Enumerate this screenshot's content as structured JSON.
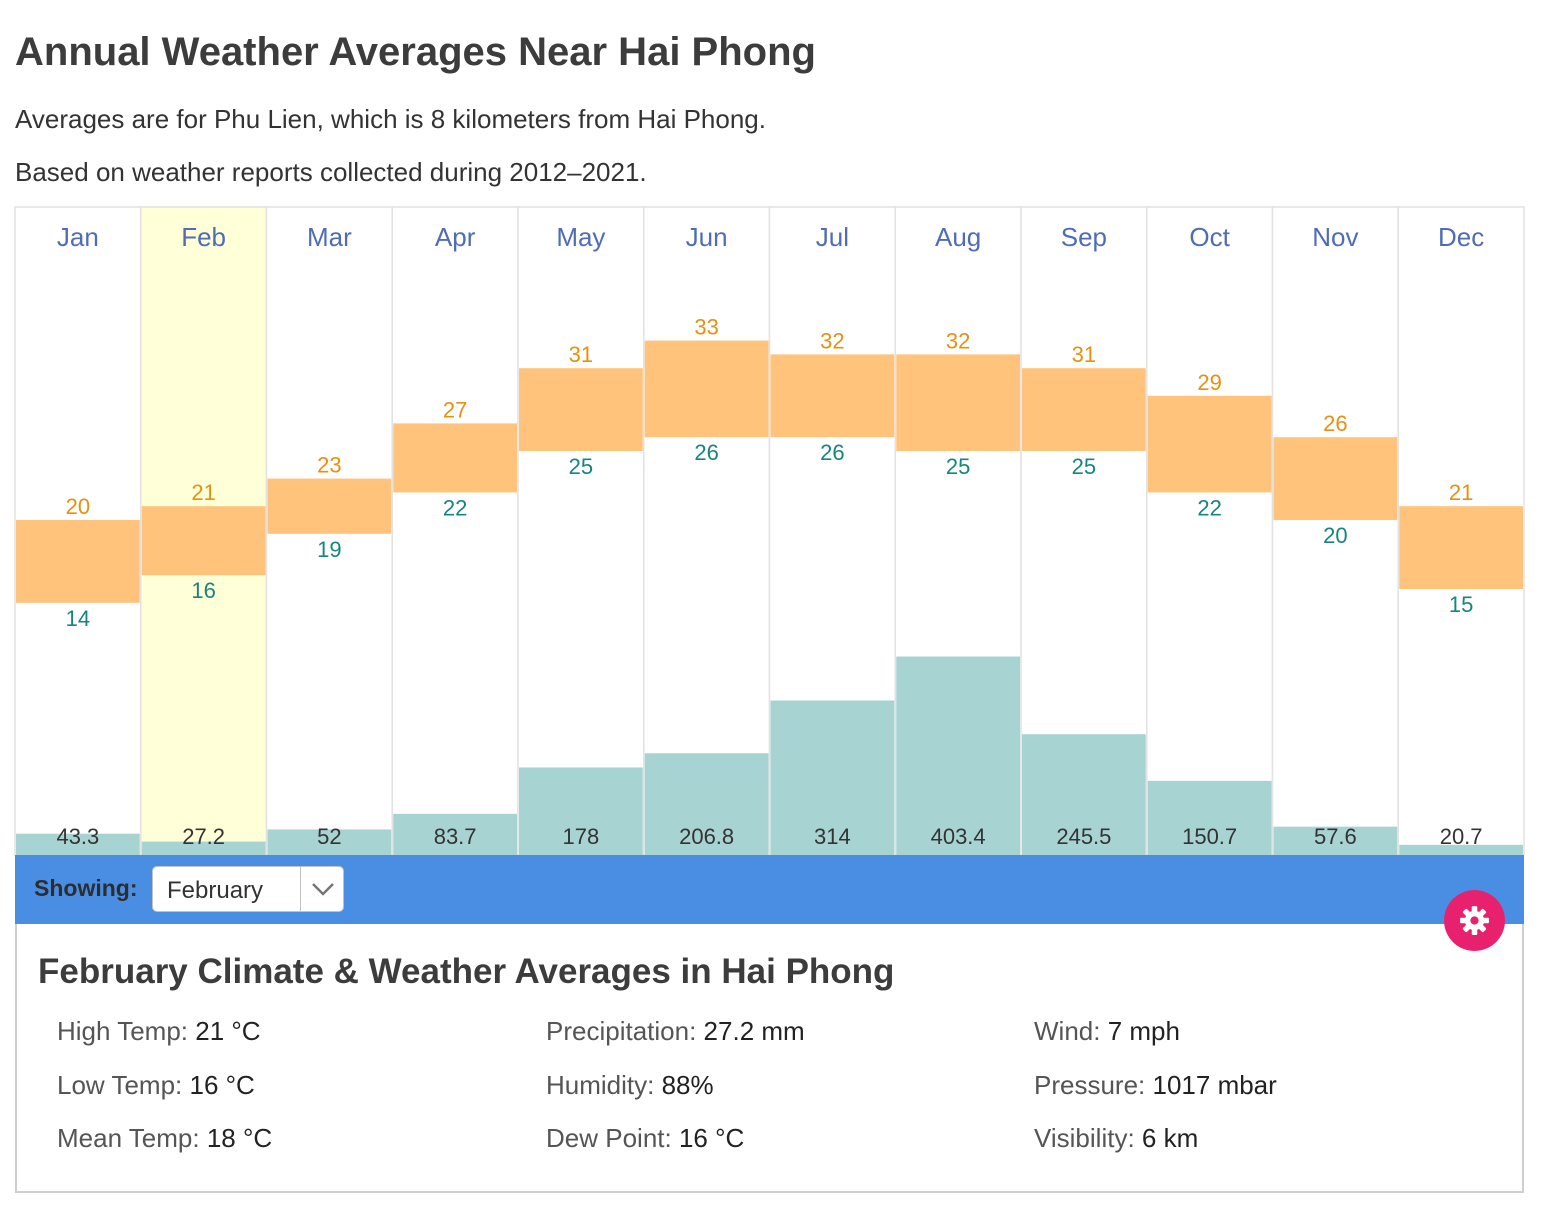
{
  "page": {
    "title": "Annual Weather Averages Near Hai Phong",
    "subtitle1": "Averages are for Phu Lien, which is 8 kilometers from Hai Phong.",
    "subtitle2": "Based on weather reports collected during 2012–2021."
  },
  "chart_data": {
    "type": "bar",
    "categories": [
      "Jan",
      "Feb",
      "Mar",
      "Apr",
      "May",
      "Jun",
      "Jul",
      "Aug",
      "Sep",
      "Oct",
      "Nov",
      "Dec"
    ],
    "highlighted_category": "Feb",
    "series": [
      {
        "name": "High Temp",
        "values": [
          20,
          21,
          23,
          27,
          31,
          33,
          32,
          32,
          31,
          29,
          26,
          21
        ]
      },
      {
        "name": "Low Temp",
        "values": [
          14,
          16,
          19,
          22,
          25,
          26,
          26,
          25,
          25,
          22,
          20,
          15
        ]
      },
      {
        "name": "Precipitation",
        "values": [
          43.3,
          27.2,
          52,
          83.7,
          178,
          206.8,
          314,
          403.4,
          245.5,
          150.7,
          57.6,
          20.7
        ]
      }
    ],
    "colors": {
      "month_label": "#4f6db5",
      "high_label": "#e8900f",
      "low_label": "#17857f",
      "temp_band": "#ffc37b",
      "precip_bar": "#a8d3d3",
      "highlight": "#ffffd8",
      "gridline": "#e2e2e2"
    }
  },
  "controls": {
    "showing_label": "Showing:",
    "selected_month": "February",
    "settings_icon": "gear-icon"
  },
  "details": {
    "title": "February Climate & Weather Averages in Hai Phong",
    "stats": [
      {
        "label": "High Temp:",
        "value": "21 °C"
      },
      {
        "label": "Low Temp:",
        "value": "16 °C"
      },
      {
        "label": "Mean Temp:",
        "value": "18 °C"
      },
      {
        "label": "Precipitation:",
        "value": "27.2 mm"
      },
      {
        "label": "Humidity:",
        "value": "88%"
      },
      {
        "label": "Dew Point:",
        "value": "16 °C"
      },
      {
        "label": "Wind:",
        "value": "7 mph"
      },
      {
        "label": "Pressure:",
        "value": "1017 mbar"
      },
      {
        "label": "Visibility:",
        "value": "6 km"
      }
    ]
  }
}
